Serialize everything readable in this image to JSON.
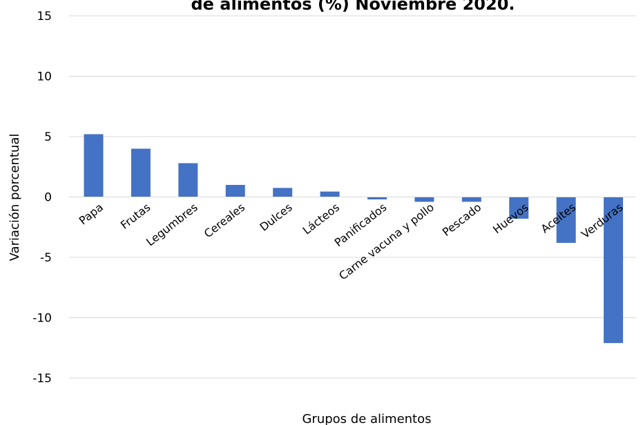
{
  "chart_data": {
    "type": "bar",
    "title": "de alimentos (%) Noviembre 2020.",
    "xlabel": "Grupos de alimentos",
    "ylabel": "Variación porcentual",
    "ylim": [
      -15,
      15
    ],
    "yticks": [
      15,
      10,
      5,
      0,
      -5,
      -10,
      -15
    ],
    "grid": true,
    "legend": "none",
    "bar_color": "#4472C4",
    "categories": [
      "Papa",
      "Frutas",
      "Legumbres",
      "Cereales",
      "Dulces",
      "Lácteos",
      "Panificados",
      "Carne vacuna y pollo",
      "Pescado",
      "Huevos",
      "Aceites",
      "Verduras"
    ],
    "values": [
      5.2,
      4.0,
      2.8,
      1.0,
      0.75,
      0.45,
      -0.2,
      -0.4,
      -0.4,
      -1.8,
      -3.8,
      -12.1
    ]
  }
}
